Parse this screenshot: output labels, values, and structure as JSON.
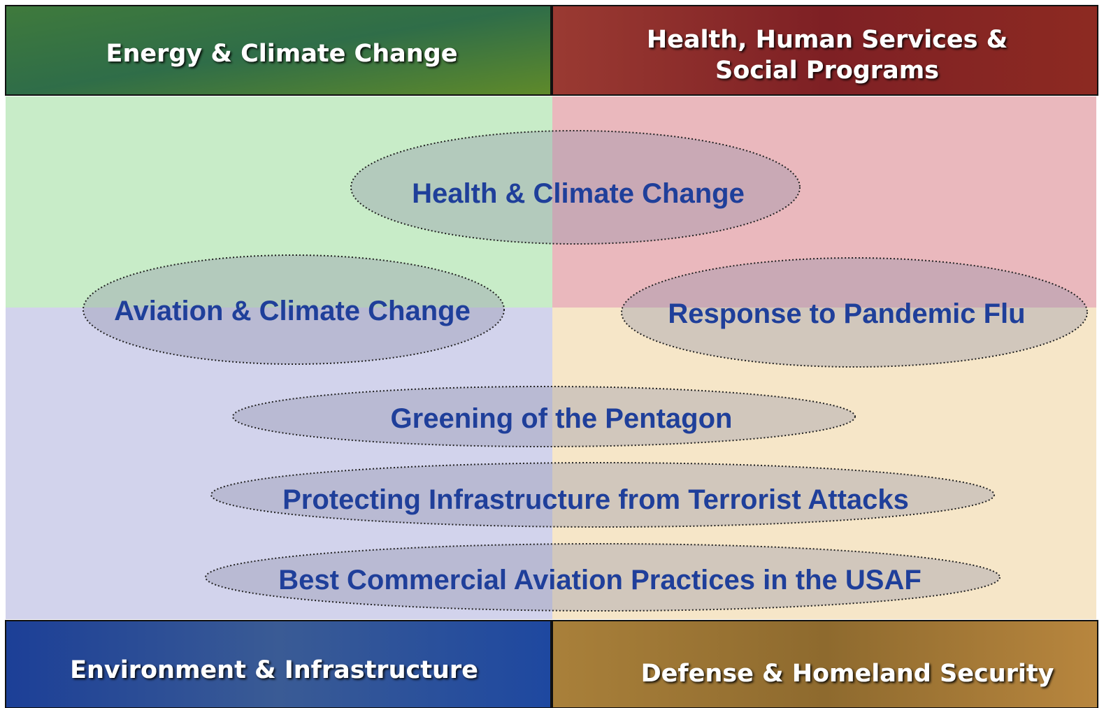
{
  "quadrants": [
    {
      "title_lines": [
        "Energy & Climate Change"
      ]
    },
    {
      "title_lines": [
        "Health, Human Services &",
        "Social Programs"
      ]
    },
    {
      "title_lines": [
        "Environment & Infrastructure"
      ]
    },
    {
      "title_lines": [
        "Defense & Homeland Security"
      ]
    }
  ],
  "topics": [
    {
      "label": "Health & Climate Change"
    },
    {
      "label": "Aviation & Climate Change"
    },
    {
      "label": "Response to Pandemic Flu"
    },
    {
      "label": "Greening of the Pentagon"
    },
    {
      "label": "Protecting Infrastructure from Terrorist Attacks"
    },
    {
      "label": "Best Commercial Aviation Practices in the USAF"
    }
  ]
}
